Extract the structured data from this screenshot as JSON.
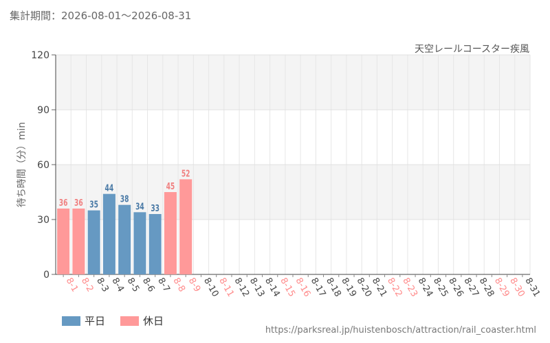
{
  "header": {
    "period": "集計期間：2026-08-01～2026-08-31",
    "attraction": "天空レールコースター疾風"
  },
  "legend": {
    "weekday_label": "平日",
    "holiday_label": "休日",
    "weekday_color": "#6699c2",
    "holiday_color": "#ff9999"
  },
  "source": "https://parksreal.jp/huistenbosch/attraction/rail_coaster.html",
  "chart_data": {
    "type": "bar",
    "ylabel": "待ち時間（分）min",
    "ylim": [
      0,
      120
    ],
    "yticks": [
      0,
      30,
      60,
      90,
      120
    ],
    "grid": true,
    "legend_position": "bottom-left",
    "colors": {
      "weekday": "#6699c2",
      "holiday": "#ff9999"
    },
    "categories": [
      "8-1",
      "8-2",
      "8-3",
      "8-4",
      "8-5",
      "8-6",
      "8-7",
      "8-8",
      "8-9",
      "8-10",
      "8-11",
      "8-12",
      "8-13",
      "8-14",
      "8-15",
      "8-16",
      "8-17",
      "8-18",
      "8-19",
      "8-20",
      "8-21",
      "8-22",
      "8-23",
      "8-24",
      "8-25",
      "8-26",
      "8-27",
      "8-28",
      "8-29",
      "8-30",
      "8-31"
    ],
    "day_type": [
      "holiday",
      "holiday",
      "weekday",
      "weekday",
      "weekday",
      "weekday",
      "weekday",
      "holiday",
      "holiday",
      "weekday",
      "holiday",
      "weekday",
      "weekday",
      "weekday",
      "holiday",
      "holiday",
      "weekday",
      "weekday",
      "weekday",
      "weekday",
      "weekday",
      "holiday",
      "holiday",
      "weekday",
      "weekday",
      "weekday",
      "weekday",
      "weekday",
      "holiday",
      "holiday",
      "weekday"
    ],
    "values": [
      36,
      36,
      35,
      44,
      38,
      34,
      33,
      45,
      52,
      null,
      null,
      null,
      null,
      null,
      null,
      null,
      null,
      null,
      null,
      null,
      null,
      null,
      null,
      null,
      null,
      null,
      null,
      null,
      null,
      null,
      null
    ]
  }
}
